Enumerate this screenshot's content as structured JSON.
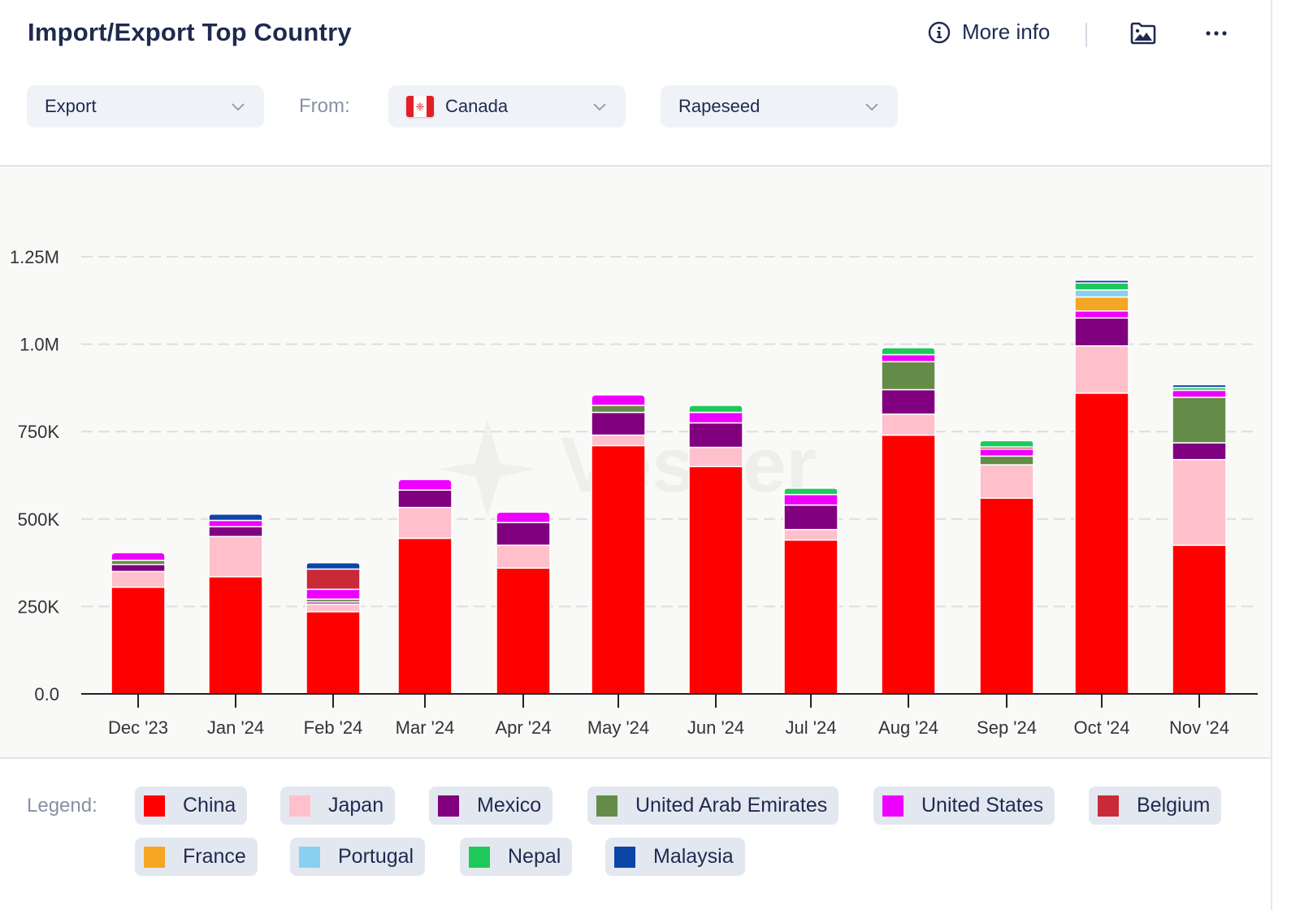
{
  "header": {
    "title": "Import/Export Top Country",
    "more_info_label": "More info",
    "icons": {
      "info": "info-circle-icon",
      "image": "image-folder-icon",
      "menu": "more-horizontal-icon"
    }
  },
  "filters": {
    "trade_type": "Export",
    "from_label": "From:",
    "country": "Canada",
    "country_flag": "canada-flag",
    "product": "Rapeseed"
  },
  "watermark": "Vesper",
  "legend": {
    "title": "Legend:",
    "items": [
      {
        "label": "China",
        "color": "#ff0000"
      },
      {
        "label": "Japan",
        "color": "#ffc0cb"
      },
      {
        "label": "Mexico",
        "color": "#800080"
      },
      {
        "label": "United Arab Emirates",
        "color": "#648c48"
      },
      {
        "label": "United States",
        "color": "#ee00ff"
      },
      {
        "label": "Belgium",
        "color": "#c92a37"
      },
      {
        "label": "France",
        "color": "#f5a623"
      },
      {
        "label": "Portugal",
        "color": "#89cff0"
      },
      {
        "label": "Nepal",
        "color": "#1fc85a"
      },
      {
        "label": "Malaysia",
        "color": "#0b45a6"
      }
    ]
  },
  "chart_data": {
    "type": "bar",
    "stacked": true,
    "title": "Import/Export Top Country",
    "xlabel": "",
    "ylabel": "",
    "ylim": [
      0,
      1250000
    ],
    "y_ticks": [
      0,
      250000,
      500000,
      750000,
      1000000,
      1250000
    ],
    "y_tick_labels": [
      "0.0",
      "250K",
      "500K",
      "750K",
      "1.0M",
      "1.25M"
    ],
    "grid": true,
    "legend_position": "bottom",
    "categories": [
      "Dec '23",
      "Jan '24",
      "Feb '24",
      "Mar '24",
      "Apr '24",
      "May '24",
      "Jun '24",
      "Jul '24",
      "Aug '24",
      "Sep '24",
      "Oct '24",
      "Nov '24"
    ],
    "series": [
      {
        "name": "China",
        "color": "#ff0000",
        "values": [
          305000,
          335000,
          235000,
          445000,
          360000,
          710000,
          650000,
          440000,
          740000,
          560000,
          860000,
          425000
        ]
      },
      {
        "name": "Japan",
        "color": "#ffc0cb",
        "values": [
          45000,
          115000,
          22000,
          88000,
          65000,
          30000,
          55000,
          30000,
          60000,
          95000,
          135000,
          245000
        ]
      },
      {
        "name": "Mexico",
        "color": "#800080",
        "values": [
          20000,
          28000,
          6000,
          50000,
          65000,
          65000,
          70000,
          70000,
          70000,
          0,
          80000,
          48000
        ]
      },
      {
        "name": "United Arab Emirates",
        "color": "#648c48",
        "values": [
          12000,
          0,
          8000,
          0,
          0,
          20000,
          0,
          0,
          80000,
          25000,
          0,
          130000
        ]
      },
      {
        "name": "United States",
        "color": "#ee00ff",
        "values": [
          22000,
          18000,
          28000,
          30000,
          30000,
          30000,
          30000,
          30000,
          20000,
          20000,
          20000,
          20000
        ]
      },
      {
        "name": "Belgium",
        "color": "#c92a37",
        "values": [
          0,
          0,
          58000,
          0,
          0,
          0,
          0,
          0,
          0,
          6000,
          0,
          0
        ]
      },
      {
        "name": "France",
        "color": "#f5a623",
        "values": [
          0,
          0,
          0,
          0,
          0,
          0,
          0,
          0,
          0,
          0,
          40000,
          0
        ]
      },
      {
        "name": "Portugal",
        "color": "#89cff0",
        "values": [
          0,
          0,
          0,
          0,
          0,
          0,
          0,
          0,
          0,
          0,
          20000,
          0
        ]
      },
      {
        "name": "Nepal",
        "color": "#1fc85a",
        "values": [
          0,
          0,
          0,
          0,
          0,
          0,
          20000,
          18000,
          20000,
          18000,
          20000,
          8000
        ]
      },
      {
        "name": "Malaysia",
        "color": "#0b45a6",
        "values": [
          0,
          18000,
          18000,
          0,
          0,
          0,
          0,
          0,
          0,
          0,
          8000,
          8000
        ]
      }
    ]
  }
}
